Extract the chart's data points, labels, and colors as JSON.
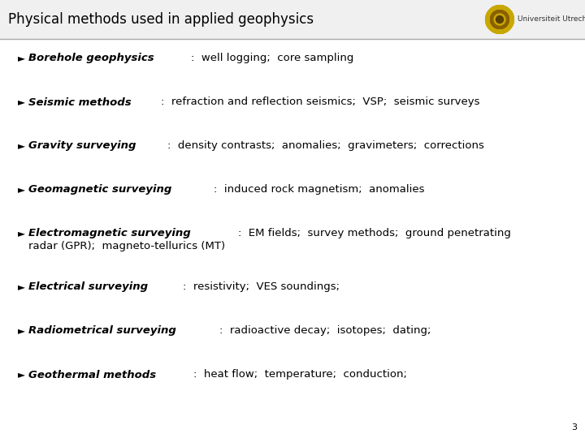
{
  "title": "Physical methods used in applied geophysics",
  "title_fontsize": 12,
  "title_color": "#000000",
  "bg_color": "#ffffff",
  "header_bg_color": "#f0f0f0",
  "page_number": "3",
  "bullet_char": "►",
  "body_fontsize": 9.5,
  "items": [
    {
      "bold_italic": "Borehole geophysics",
      "normal": ":  well logging;  core sampling",
      "extra_line": null
    },
    {
      "bold_italic": "Seismic methods",
      "normal": ":  refraction and reflection seismics;  VSP;  seismic surveys",
      "extra_line": null
    },
    {
      "bold_italic": "Gravity surveying",
      "normal": ":  density contrasts;  anomalies;  gravimeters;  corrections",
      "extra_line": null
    },
    {
      "bold_italic": "Geomagnetic surveying",
      "normal": ":  induced rock magnetism;  anomalies",
      "extra_line": null
    },
    {
      "bold_italic": "Electromagnetic surveying",
      "normal": ":  EM fields;  survey methods;  ground penetrating",
      "extra_line": "radar (GPR);  magneto-tellurics (MT)"
    },
    {
      "bold_italic": "Electrical surveying",
      "normal": ":  resistivity;  VES soundings;",
      "extra_line": null
    },
    {
      "bold_italic": "Radiometrical surveying",
      "normal": ":  radioactive decay;  isotopes;  dating;",
      "extra_line": null
    },
    {
      "bold_italic": "Geothermal methods",
      "normal": ":  heat flow;  temperature;  conduction;",
      "extra_line": null
    }
  ]
}
